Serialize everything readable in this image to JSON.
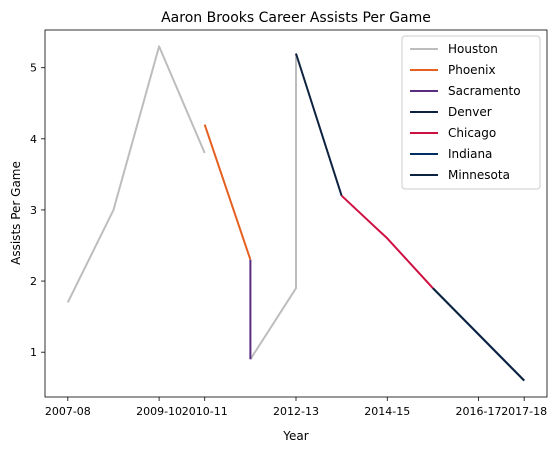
{
  "chart_data": {
    "type": "line",
    "title": "Aaron Brooks  Career Assists Per Game",
    "xlabel": "Year",
    "ylabel": "Assists Per Game",
    "x_ticks": [
      "2007-08",
      "2009-10",
      "2010-11",
      "2012-13",
      "2014-15",
      "2016-17",
      "2017-18"
    ],
    "y_ticks": [
      1,
      2,
      3,
      4,
      5
    ],
    "ylim": [
      0.37,
      5.53
    ],
    "grid": false,
    "legend_position": "top-right",
    "series": [
      {
        "name": "Houston",
        "color": "#bdbdbd",
        "points": [
          {
            "x": "2007-08",
            "y": 1.7
          },
          {
            "x": "2008-09",
            "y": 3.0
          },
          {
            "x": "2009-10",
            "y": 5.3
          },
          {
            "x": "2010-11",
            "y": 3.8
          }
        ]
      },
      {
        "name": "Houston",
        "color": "#bdbdbd",
        "points": [
          {
            "x": "2011-12",
            "y": 0.9
          },
          {
            "x": "2012-13",
            "y": 1.9
          },
          {
            "x": "2012-13",
            "y": 5.2
          }
        ]
      },
      {
        "name": "Phoenix",
        "color": "#e56020",
        "points": [
          {
            "x": "2010-11",
            "y": 4.2
          },
          {
            "x": "2011-12",
            "y": 2.3
          }
        ]
      },
      {
        "name": "Sacramento",
        "color": "#5a2d81",
        "points": [
          {
            "x": "2011-12",
            "y": 2.3
          },
          {
            "x": "2011-12",
            "y": 0.9
          }
        ]
      },
      {
        "name": "Denver",
        "color": "#0e2240",
        "points": [
          {
            "x": "2012-13",
            "y": 5.2
          },
          {
            "x": "2013-14",
            "y": 3.2
          }
        ]
      },
      {
        "name": "Chicago",
        "color": "#ce1141",
        "points": [
          {
            "x": "2013-14",
            "y": 3.2
          },
          {
            "x": "2014-15",
            "y": 2.6
          },
          {
            "x": "2015-16",
            "y": 1.9
          }
        ]
      },
      {
        "name": "Indiana",
        "color": "#002d62",
        "points": [
          {
            "x": "2015-16",
            "y": 1.9
          },
          {
            "x": "2017-18",
            "y": 0.6
          }
        ]
      },
      {
        "name": "Minnesota",
        "color": "#0c2340",
        "points": [
          {
            "x": "2015-16",
            "y": 1.9
          },
          {
            "x": "2017-18",
            "y": 0.6
          }
        ]
      }
    ],
    "legend": [
      {
        "label": "Houston",
        "color": "#bdbdbd"
      },
      {
        "label": "Phoenix",
        "color": "#e56020"
      },
      {
        "label": "Sacramento",
        "color": "#5a2d81"
      },
      {
        "label": "Denver",
        "color": "#0e2240"
      },
      {
        "label": "Chicago",
        "color": "#ce1141"
      },
      {
        "label": "Indiana",
        "color": "#002d62"
      },
      {
        "label": "Minnesota",
        "color": "#0c2340"
      }
    ]
  }
}
